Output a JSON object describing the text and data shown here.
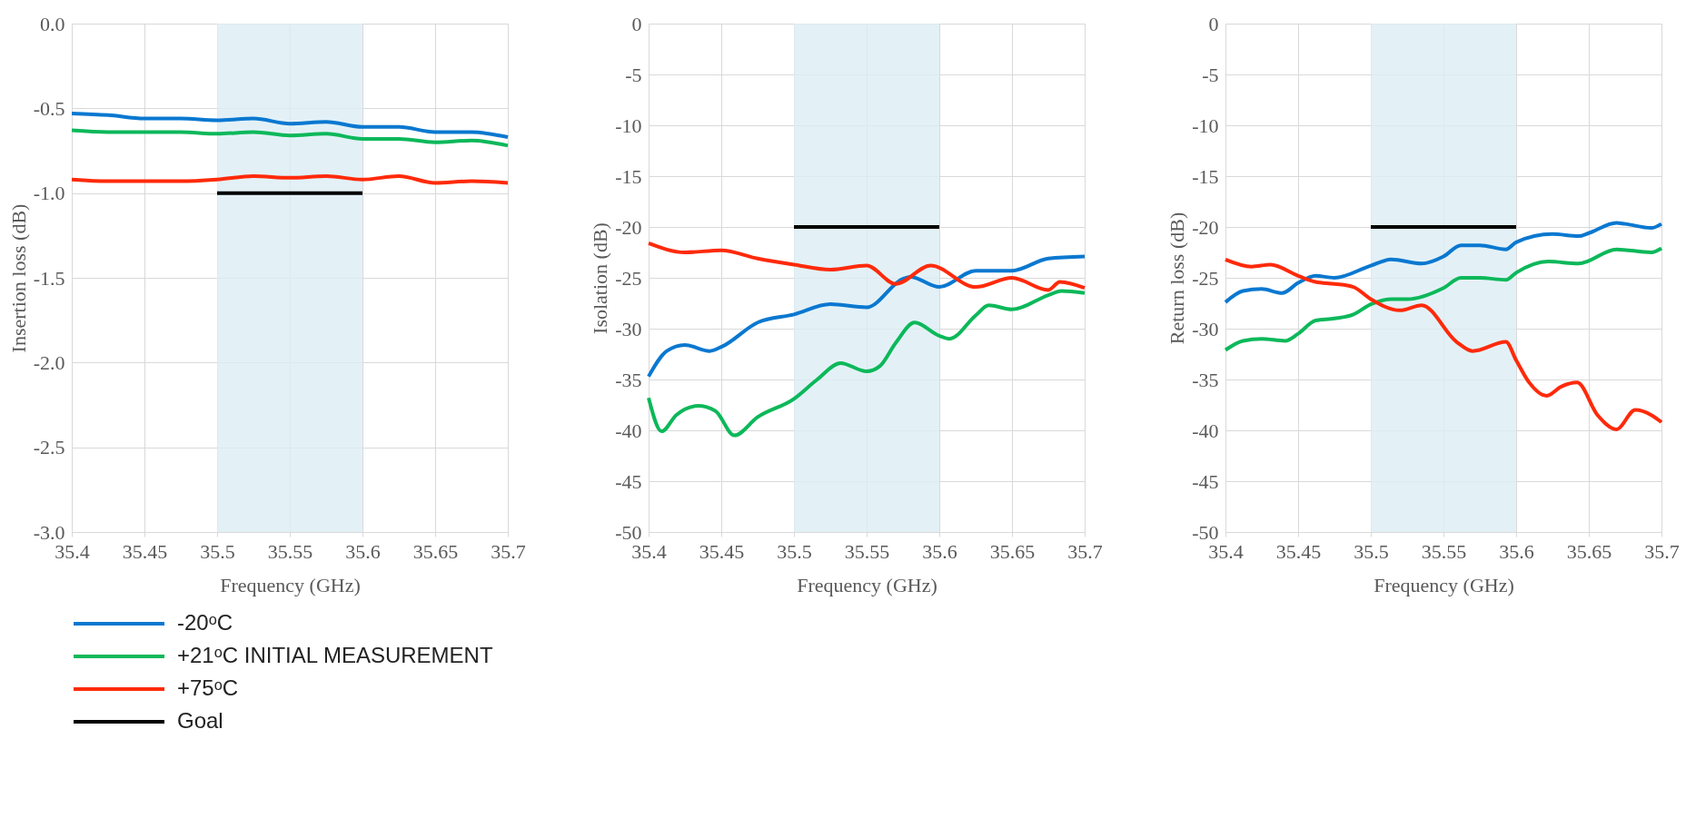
{
  "chart_data": [
    {
      "type": "line",
      "xlabel": "Frequency (GHz)",
      "ylabel": "Insertion loss (dB)",
      "xlim": [
        35.4,
        35.7
      ],
      "xticks": [
        35.4,
        35.45,
        35.5,
        35.55,
        35.6,
        35.65,
        35.7
      ],
      "ylim": [
        -3,
        0
      ],
      "yticks": [
        {
          "value": -3,
          "label": "-3.0"
        },
        -2.5,
        {
          "value": -2,
          "label": "-2.0"
        },
        -1.5,
        {
          "value": -1,
          "label": "-1.0"
        },
        -0.5,
        {
          "value": 0,
          "label": "0.0"
        }
      ],
      "grid": true,
      "legend": "bottom",
      "bands": [
        {
          "axis": "x",
          "from": 35.5,
          "to": 35.6,
          "color": "#dcedf5"
        }
      ],
      "series": [
        {
          "name": "-20ᵒC",
          "color": "#0a78d0",
          "x": [
            35.4,
            35.425,
            35.45,
            35.475,
            35.5,
            35.525,
            35.55,
            35.575,
            35.6,
            35.625,
            35.65,
            35.675,
            35.7
          ],
          "values": [
            -0.53,
            -0.54,
            -0.56,
            -0.56,
            -0.57,
            -0.56,
            -0.59,
            -0.58,
            -0.61,
            -0.61,
            -0.64,
            -0.64,
            -0.67
          ]
        },
        {
          "name": "+21ᵒC INITIAL MEASUREMENT",
          "color": "#0cb85a",
          "x": [
            35.4,
            35.425,
            35.45,
            35.475,
            35.5,
            35.525,
            35.55,
            35.575,
            35.6,
            35.625,
            35.65,
            35.675,
            35.7
          ],
          "values": [
            -0.63,
            -0.64,
            -0.64,
            -0.64,
            -0.65,
            -0.64,
            -0.66,
            -0.65,
            -0.68,
            -0.68,
            -0.7,
            -0.69,
            -0.72
          ]
        },
        {
          "name": "+75ᵒC",
          "color": "#ff2a0a",
          "x": [
            35.4,
            35.425,
            35.45,
            35.475,
            35.5,
            35.525,
            35.55,
            35.575,
            35.6,
            35.625,
            35.65,
            35.675,
            35.7
          ],
          "values": [
            -0.92,
            -0.93,
            -0.93,
            -0.93,
            -0.92,
            -0.9,
            -0.91,
            -0.9,
            -0.92,
            -0.9,
            -0.94,
            -0.93,
            -0.94
          ]
        },
        {
          "name": "Goal",
          "color": "#000000",
          "x": [
            35.5,
            35.6
          ],
          "values": [
            -1,
            -1
          ]
        }
      ]
    },
    {
      "type": "line",
      "xlabel": "Frequency (GHz)",
      "ylabel": "Isolation (dB)",
      "xlim": [
        35.4,
        35.7
      ],
      "xticks": [
        35.4,
        35.45,
        35.5,
        35.55,
        35.6,
        35.65,
        35.7
      ],
      "ylim": [
        -50,
        0
      ],
      "yticks": [
        -50,
        -45,
        -40,
        -35,
        -30,
        -25,
        -20,
        -15,
        -10,
        -5,
        0
      ],
      "grid": true,
      "bands": [
        {
          "axis": "x",
          "from": 35.5,
          "to": 35.6,
          "color": "#dcedf5"
        }
      ],
      "series": [
        {
          "color": "#0a78d0",
          "x": [
            35.4,
            35.4125,
            35.425,
            35.442,
            35.45,
            35.475,
            35.5,
            35.525,
            35.55,
            35.575,
            35.58,
            35.6,
            35.625,
            35.65,
            35.675,
            35.7
          ],
          "values": [
            -34.7,
            -32.2,
            -31.6,
            -32.2,
            -31.8,
            -29.4,
            -28.6,
            -27.6,
            -27.9,
            -25.1,
            -24.9,
            -25.9,
            -24.3,
            -24.3,
            -23.1,
            -22.9
          ]
        },
        {
          "color": "#0cb85a",
          "x": [
            35.4,
            35.409,
            35.419,
            35.434,
            35.446,
            35.459,
            35.475,
            35.5,
            35.516,
            35.532,
            35.55,
            35.559,
            35.57,
            35.583,
            35.6,
            35.607,
            35.625,
            35.634,
            35.65,
            35.675,
            35.684,
            35.7
          ],
          "values": [
            -36.8,
            -40.1,
            -38.5,
            -37.6,
            -38.1,
            -40.5,
            -38.7,
            -36.9,
            -35,
            -33.4,
            -34.2,
            -33.7,
            -31.4,
            -29.4,
            -30.7,
            -31,
            -28.7,
            -27.7,
            -28.1,
            -26.7,
            -26.3,
            -26.5
          ]
        },
        {
          "color": "#ff2a0a",
          "x": [
            35.4,
            35.425,
            35.45,
            35.475,
            35.5,
            35.525,
            35.55,
            35.57,
            35.594,
            35.625,
            35.65,
            35.675,
            35.683,
            35.7
          ],
          "values": [
            -21.6,
            -22.5,
            -22.3,
            -23.1,
            -23.7,
            -24.2,
            -23.8,
            -25.6,
            -23.8,
            -25.9,
            -25,
            -26.2,
            -25.4,
            -26
          ]
        },
        {
          "color": "#000000",
          "x": [
            35.5,
            35.6
          ],
          "values": [
            -20,
            -20
          ]
        }
      ]
    },
    {
      "type": "line",
      "xlabel": "Frequency (GHz)",
      "ylabel": "Return loss (dB)",
      "xlim": [
        35.4,
        35.7
      ],
      "xticks": [
        35.4,
        35.45,
        35.5,
        35.55,
        35.6,
        35.65,
        35.7
      ],
      "ylim": [
        -50,
        0
      ],
      "yticks": [
        -50,
        -45,
        -40,
        -35,
        -30,
        -25,
        -20,
        -15,
        -10,
        -5,
        0
      ],
      "grid": true,
      "bands": [
        {
          "axis": "x",
          "from": 35.5,
          "to": 35.6,
          "color": "#dcedf5"
        }
      ],
      "series": [
        {
          "color": "#0a78d0",
          "x": [
            35.4,
            35.412,
            35.425,
            35.439,
            35.45,
            35.462,
            35.475,
            35.5,
            35.514,
            35.535,
            35.55,
            35.562,
            35.575,
            35.593,
            35.6,
            35.625,
            35.643,
            35.65,
            35.669,
            35.675,
            35.693,
            35.7
          ],
          "values": [
            -27.4,
            -26.3,
            -26.1,
            -26.5,
            -25.5,
            -24.8,
            -25,
            -23.8,
            -23.2,
            -23.6,
            -22.9,
            -21.8,
            -21.8,
            -22.2,
            -21.5,
            -20.7,
            -20.9,
            -20.6,
            -19.6,
            -19.7,
            -20.1,
            -19.7
          ]
        },
        {
          "color": "#0cb85a",
          "x": [
            35.4,
            35.412,
            35.425,
            35.441,
            35.45,
            35.462,
            35.475,
            35.488,
            35.5,
            35.514,
            35.525,
            35.55,
            35.562,
            35.575,
            35.593,
            35.6,
            35.622,
            35.643,
            35.669,
            35.693,
            35.7
          ],
          "values": [
            -32.1,
            -31.2,
            -31,
            -31.2,
            -30.5,
            -29.2,
            -29,
            -28.6,
            -27.6,
            -27.1,
            -27.1,
            -26,
            -25,
            -25,
            -25.2,
            -24.5,
            -23.4,
            -23.6,
            -22.2,
            -22.5,
            -22.1
          ]
        },
        {
          "color": "#ff2a0a",
          "x": [
            35.4,
            35.418,
            35.431,
            35.45,
            35.462,
            35.475,
            35.488,
            35.5,
            35.52,
            35.535,
            35.559,
            35.57,
            35.593,
            35.6,
            35.609,
            35.621,
            35.631,
            35.642,
            35.656,
            35.669,
            35.682,
            35.693,
            35.7
          ],
          "values": [
            -23.2,
            -23.9,
            -23.7,
            -24.8,
            -25.4,
            -25.6,
            -25.9,
            -27.1,
            -28.2,
            -27.7,
            -31.3,
            -32.2,
            -31.3,
            -33.1,
            -35.3,
            -36.6,
            -35.7,
            -35.3,
            -38.5,
            -39.9,
            -38,
            -38.5,
            -39.2
          ]
        },
        {
          "color": "#000000",
          "x": [
            35.5,
            35.6
          ],
          "values": [
            -20,
            -20
          ]
        }
      ]
    }
  ]
}
